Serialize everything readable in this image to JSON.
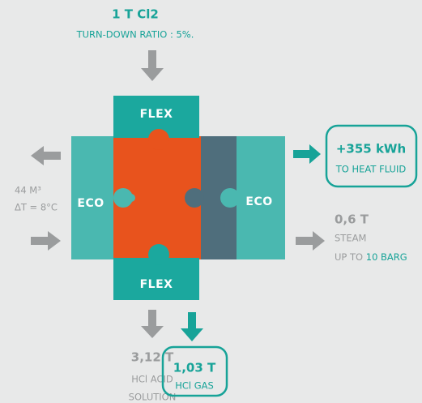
{
  "input": {
    "amount": "1 T Cl2",
    "note": "TURN-DOWN RATIO : 5%."
  },
  "modules": {
    "flex_top": "FLEX",
    "flex_bottom": "FLEX",
    "eco_left": "ECO",
    "eco_right": "ECO"
  },
  "cooling": {
    "volume": "44 M³",
    "delta_t": "ΔT = 8°C"
  },
  "heat": {
    "amount": "+355 kWh",
    "label": "TO HEAT FLUID"
  },
  "steam": {
    "amount": "0,6 T",
    "label": "STEAM",
    "pressure_prefix": "UP TO",
    "pressure": "10 BARG"
  },
  "acid": {
    "amount": "3,12 T",
    "label_1": "HCl ACID",
    "label_2": "SOLUTION"
  },
  "gas": {
    "amount": "1,03 T",
    "label": "HCl GAS"
  }
}
